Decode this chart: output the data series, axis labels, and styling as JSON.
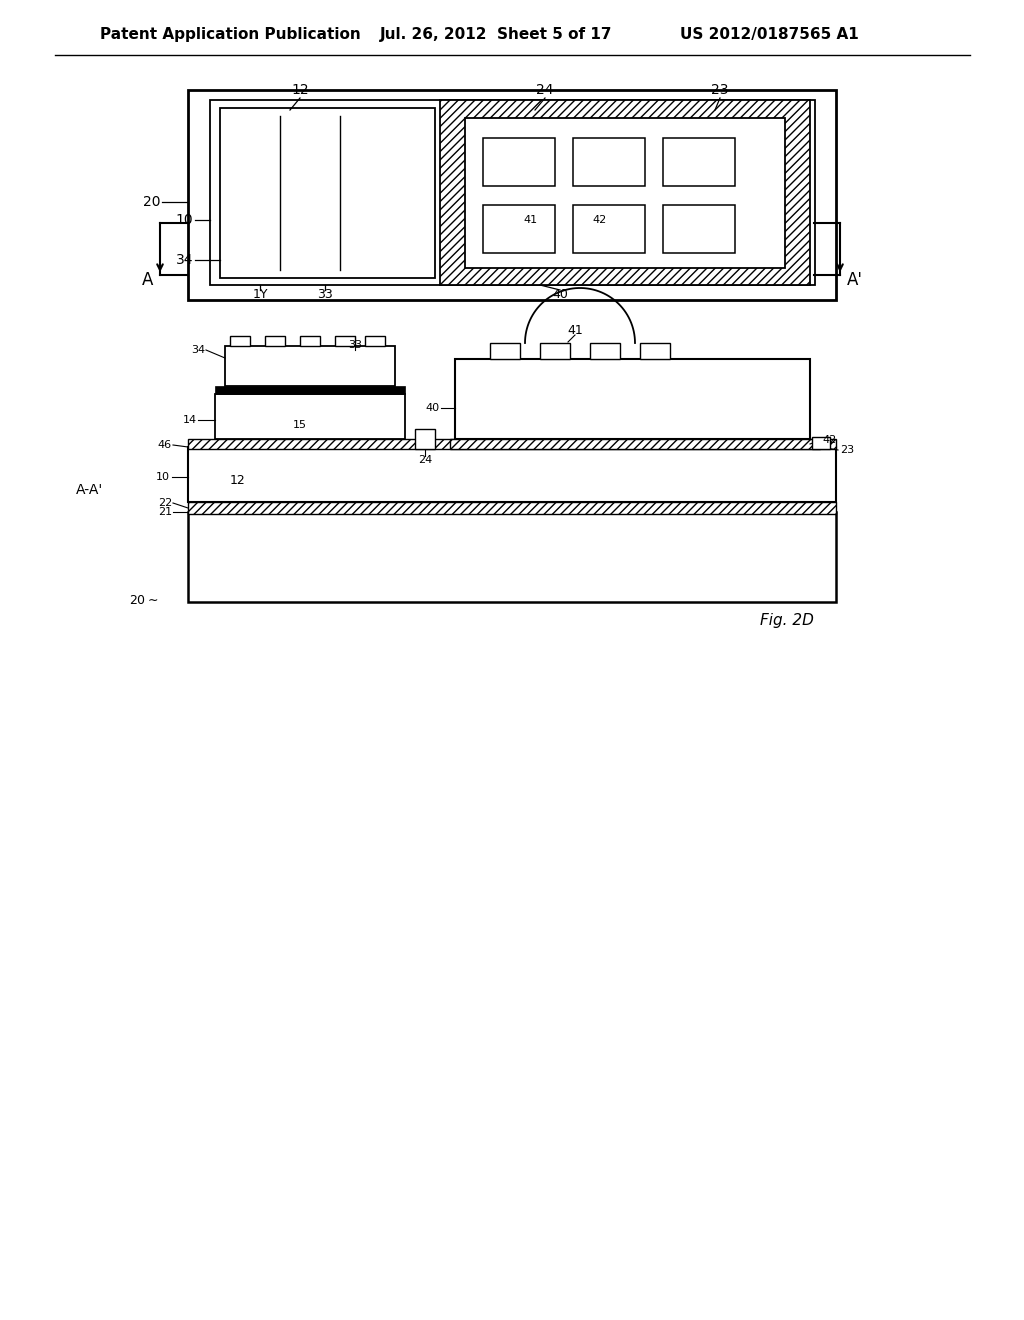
{
  "header_left": "Patent Application Publication",
  "header_mid": "Jul. 26, 2012  Sheet 5 of 17",
  "header_right": "US 2012/0187565 A1",
  "fig_label": "Fig. 2D",
  "bg_color": "#ffffff"
}
